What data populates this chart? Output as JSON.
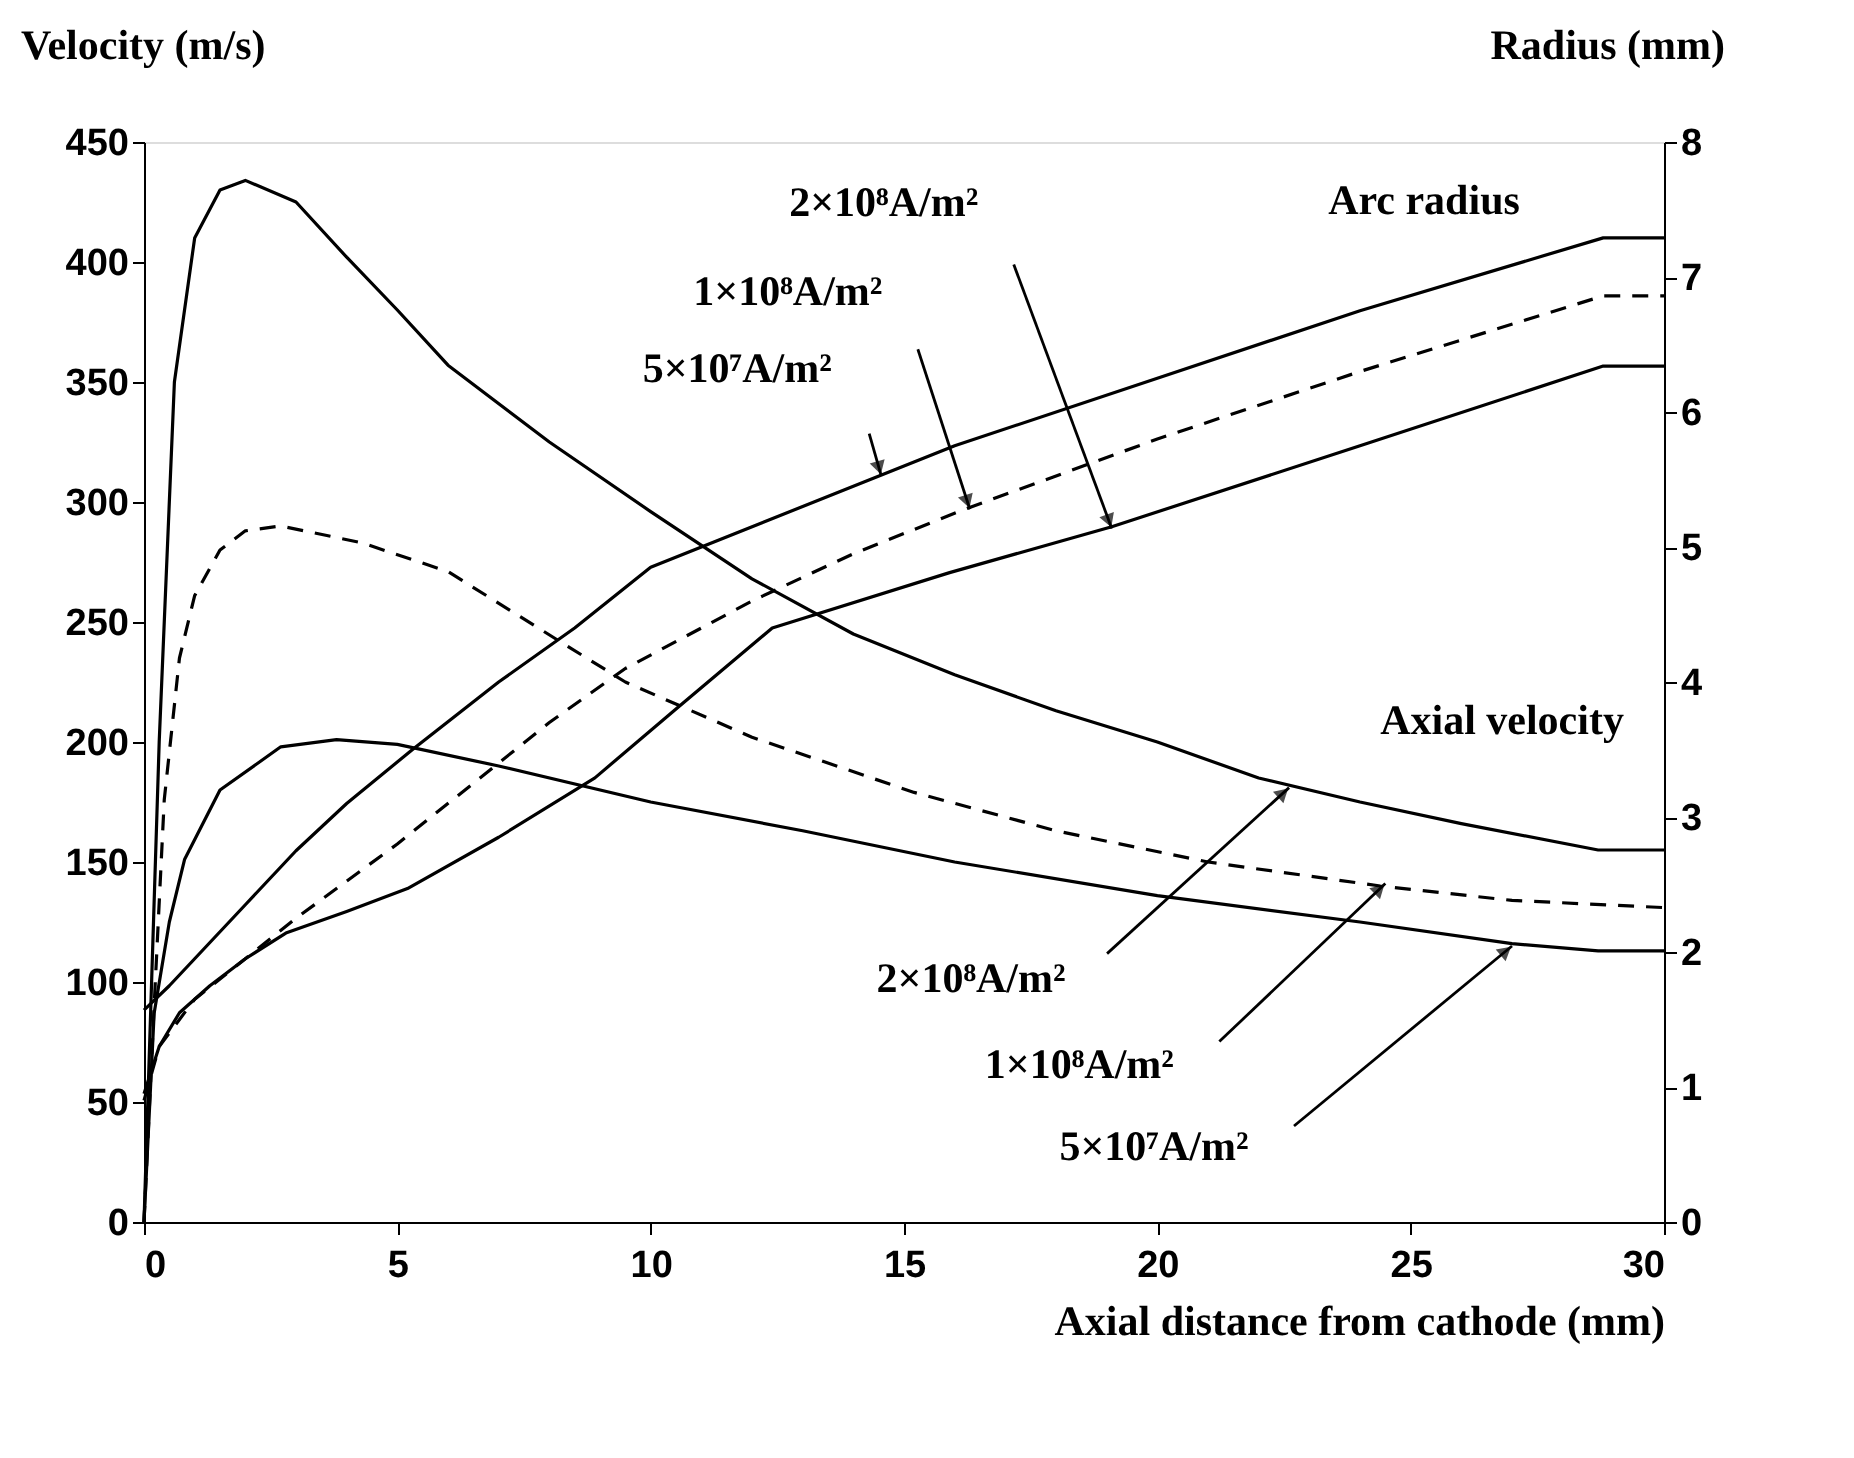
{
  "chart_data": {
    "type": "line",
    "xlabel": "Axial distance from cathode (mm)",
    "ylabel": "Velocity (m/s)",
    "y2label": "Radius (mm)",
    "xlim": [
      0,
      30
    ],
    "xticks": [
      0,
      5,
      10,
      15,
      20,
      25,
      30
    ],
    "ylim": [
      0,
      450
    ],
    "yticks": [
      0,
      50,
      100,
      150,
      200,
      250,
      300,
      350,
      400,
      450
    ],
    "y2lim": [
      0,
      8
    ],
    "y2ticks": [
      0,
      1,
      2,
      3,
      4,
      5,
      6,
      7,
      8
    ],
    "grid": false,
    "marker": "none",
    "series": [
      {
        "color": "#000000",
        "line_style": "solid",
        "x": [
          0,
          0.3,
          0.6,
          1,
          1.5,
          2,
          3,
          4,
          5,
          6,
          8,
          10,
          12,
          14,
          16,
          18,
          20,
          22,
          24,
          26,
          28.7,
          30
        ],
        "values": [
          0,
          200,
          350,
          410,
          430,
          434,
          425,
          402,
          380,
          357,
          325,
          296,
          268,
          245,
          228,
          213,
          200,
          185,
          175,
          166,
          155,
          155
        ]
      },
      {
        "color": "#000000",
        "line_style": "dashed",
        "x": [
          0,
          0.2,
          0.4,
          0.7,
          1,
          1.5,
          2,
          2.7,
          4.3,
          6,
          8.2,
          9.5,
          12,
          15.2,
          18,
          21,
          24.4,
          27,
          30
        ],
        "values": [
          0,
          90,
          176,
          235,
          261,
          280,
          288,
          290,
          283,
          271,
          242,
          225,
          202,
          179,
          163,
          150,
          140,
          134,
          131
        ]
      },
      {
        "color": "#000000",
        "line_style": "solid",
        "x": [
          0,
          0.2,
          0.5,
          0.8,
          1.5,
          2.7,
          3.8,
          5,
          7,
          10,
          13,
          16,
          20,
          24,
          27,
          28.7,
          30
        ],
        "values": [
          0,
          87,
          125,
          151,
          180,
          198,
          201,
          199,
          190,
          175,
          163,
          150,
          136,
          125,
          116,
          113,
          113
        ]
      },
      {
        "color": "#000000",
        "line_style": "solid",
        "axis": "y2",
        "x": [
          0,
          0.5,
          1,
          2,
          3,
          4,
          5.3,
          7,
          8.5,
          10,
          13,
          16,
          20,
          24,
          28.8,
          30
        ],
        "values": [
          1.57,
          1.75,
          1.95,
          2.35,
          2.75,
          3.1,
          3.5,
          4.0,
          4.4,
          4.85,
          5.3,
          5.75,
          6.25,
          6.75,
          7.29,
          7.29
        ]
      },
      {
        "color": "#000000",
        "line_style": "dashed",
        "axis": "y2",
        "x": [
          0,
          0.3,
          1,
          2,
          3,
          5,
          6.5,
          8,
          9.5,
          12,
          14,
          16.2,
          20,
          24,
          28.8,
          30
        ],
        "values": [
          0.9,
          1.3,
          1.65,
          1.95,
          2.25,
          2.8,
          3.25,
          3.7,
          4.1,
          4.6,
          4.95,
          5.28,
          5.8,
          6.3,
          6.86,
          6.86
        ]
      },
      {
        "color": "#000000",
        "line_style": "solid",
        "axis": "y2",
        "x": [
          0,
          0.3,
          0.7,
          1.3,
          2,
          2.8,
          4,
          5.2,
          7,
          8.9,
          10.5,
          12.4,
          15.9,
          19.1,
          24,
          28.8,
          30
        ],
        "values": [
          0.95,
          1.3,
          1.55,
          1.75,
          1.95,
          2.14,
          2.3,
          2.47,
          2.85,
          3.29,
          3.8,
          4.4,
          4.81,
          5.15,
          5.75,
          6.34,
          6.34
        ]
      }
    ],
    "annotations": [
      "Arc radius",
      "Axial velocity",
      {
        "text": "2×10⁸A/m²",
        "x": 19.1,
        "y": 289
      },
      {
        "text": "1×10⁸A/m²",
        "x": 16.3,
        "y": 297
      },
      {
        "text": "5×10⁷A/m²",
        "x": 14.55,
        "y": 311
      },
      {
        "text": "2×10⁸A/m²",
        "x": 22.6,
        "y": 181
      },
      {
        "text": "1×10⁸A/m²",
        "x": 24.5,
        "y": 141
      },
      {
        "text": "5×10⁷A/m²",
        "x": 27,
        "y": 115
      }
    ]
  }
}
